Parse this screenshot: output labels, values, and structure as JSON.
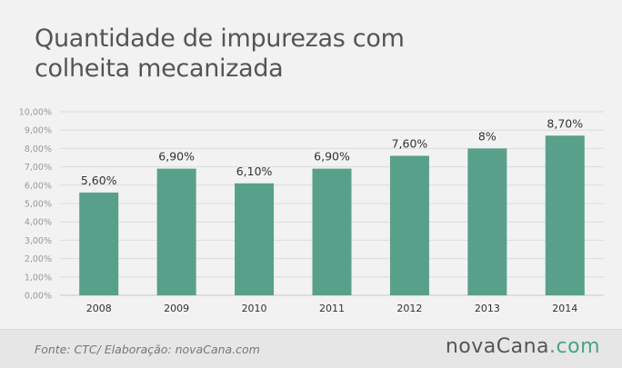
{
  "title_line1": "Quantidade de impurezas com",
  "title_line2": "colheita mecanizada",
  "source": "Fonte: CTC/ Elaboração: novaCana.com",
  "logo": {
    "main": "novaCana",
    "tld": ".com"
  },
  "colors": {
    "bar": "#58a08a",
    "grid": "#dcdcdc",
    "axis_text": "#999999",
    "label_text": "#333333"
  },
  "chart_data": {
    "type": "bar",
    "categories": [
      "2008",
      "2009",
      "2010",
      "2011",
      "2012",
      "2013",
      "2014"
    ],
    "values": [
      5.6,
      6.9,
      6.1,
      6.9,
      7.6,
      8.0,
      8.7
    ],
    "data_labels": [
      "5,60%",
      "6,90%",
      "6,10%",
      "6,90%",
      "7,60%",
      "8%",
      "8,70%"
    ],
    "title": "Quantidade de impurezas com colheita mecanizada",
    "xlabel": "",
    "ylabel": "",
    "ylim": [
      0,
      10
    ],
    "yticks": [
      0,
      1,
      2,
      3,
      4,
      5,
      6,
      7,
      8,
      9,
      10
    ],
    "ytick_labels": [
      "0,00%",
      "1,00%",
      "2,00%",
      "3,00%",
      "4,00%",
      "5,00%",
      "6,00%",
      "7,00%",
      "8,00%",
      "9,00%",
      "10,00%"
    ],
    "grid": true,
    "legend": "none"
  }
}
